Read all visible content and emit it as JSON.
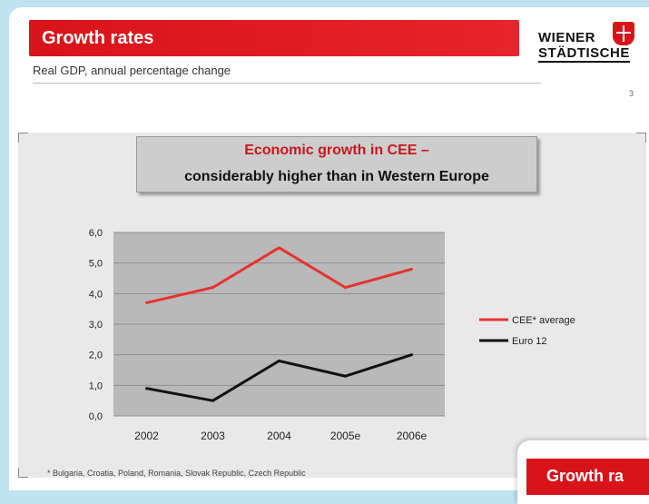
{
  "slide": {
    "title": "Growth rates",
    "subtitle": "Real GDP, annual percentage change",
    "page_number": "3",
    "logo": {
      "line1": "WIENER",
      "line2": "STÄDTISCHE"
    }
  },
  "heading": {
    "line1": "Economic growth in CEE –",
    "line2": "considerably higher than in Western Europe"
  },
  "footnote": "* Bulgaria, Croatia, Poland, Romania, Slovak Republic, Czech Republic",
  "next_slide": {
    "title": "Growth ra"
  },
  "chart_data": {
    "type": "line",
    "categories": [
      "2002",
      "2003",
      "2004",
      "2005e",
      "2006e"
    ],
    "y_ticks": [
      "0,0",
      "1,0",
      "2,0",
      "3,0",
      "4,0",
      "5,0",
      "6,0"
    ],
    "ylim": [
      0,
      6
    ],
    "grid": true,
    "legend_position": "right",
    "series": [
      {
        "name": "CEE* average",
        "color": "#e8322f",
        "values": [
          3.7,
          4.2,
          5.5,
          4.2,
          4.8
        ]
      },
      {
        "name": "Euro 12",
        "color": "#111111",
        "values": [
          0.9,
          0.5,
          1.8,
          1.3,
          2.0
        ]
      }
    ]
  }
}
